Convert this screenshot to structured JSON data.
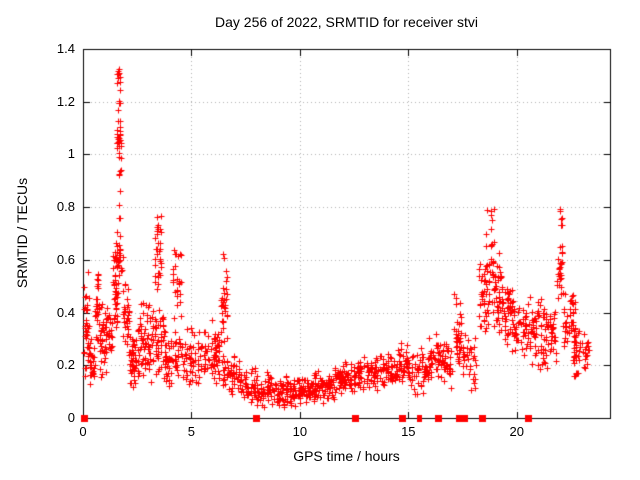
{
  "title": "Day 256 of 2022, SRMTID for receiver stvi",
  "colors": {
    "marker": "#ff0000",
    "grid": "#b0b0b0",
    "border": "#000000",
    "background": "#ffffff",
    "text": "#000000"
  },
  "axes": {
    "x": {
      "label": "GPS time / hours",
      "min": 0,
      "max": 24.3,
      "ticks": [
        {
          "v": 0,
          "label": "0"
        },
        {
          "v": 5,
          "label": "5"
        },
        {
          "v": 10,
          "label": "10"
        },
        {
          "v": 15,
          "label": "15"
        },
        {
          "v": 20,
          "label": "20"
        }
      ]
    },
    "y": {
      "label": "SRMTID / TECUs",
      "min": 0,
      "max": 1.4,
      "ticks": [
        {
          "v": 0,
          "label": "0"
        },
        {
          "v": 0.2,
          "label": "0.2"
        },
        {
          "v": 0.4,
          "label": "0.4"
        },
        {
          "v": 0.6,
          "label": "0.6"
        },
        {
          "v": 0.8,
          "label": "0.8"
        },
        {
          "v": 1,
          "label": "1"
        },
        {
          "v": 1.2,
          "label": "1.2"
        },
        {
          "v": 1.4,
          "label": "1.4"
        }
      ]
    }
  },
  "chart_data": {
    "type": "scatter",
    "title": "Day 256 of 2022, SRMTID for receiver stvi",
    "xlabel": "GPS time / hours",
    "ylabel": "SRMTID / TECUs",
    "xlim": [
      0,
      24.3
    ],
    "ylim": [
      0,
      1.4
    ],
    "grid": true,
    "legend": "none",
    "marker": "plus",
    "marker_color": "#ff0000",
    "series_name": "SRMTID",
    "point_clusters_note": "dense scatter approximated by clusters: [x_start_hr, x_end_hr, y_min_TECU, y_max_TECU, n_points, distribution(c=centered,u=uniform)]",
    "clusters": [
      [
        0.05,
        0.28,
        0.1,
        0.58,
        34,
        "c"
      ],
      [
        0.28,
        0.55,
        0.08,
        0.35,
        28,
        "c"
      ],
      [
        0.55,
        0.75,
        0.28,
        0.57,
        28,
        "c"
      ],
      [
        0.75,
        1.35,
        0.14,
        0.45,
        60,
        "c"
      ],
      [
        1.38,
        1.58,
        0.25,
        0.72,
        38,
        "c"
      ],
      [
        1.58,
        1.72,
        1.24,
        1.35,
        11,
        "c"
      ],
      [
        1.6,
        1.7,
        1.16,
        1.22,
        5,
        "u"
      ],
      [
        1.55,
        1.78,
        0.96,
        1.14,
        26,
        "c"
      ],
      [
        1.62,
        1.75,
        0.72,
        0.95,
        8,
        "u"
      ],
      [
        1.55,
        1.85,
        0.45,
        0.72,
        22,
        "c"
      ],
      [
        1.85,
        2.15,
        0.25,
        0.52,
        30,
        "c"
      ],
      [
        2.1,
        2.45,
        0.1,
        0.32,
        45,
        "c"
      ],
      [
        2.5,
        3.25,
        0.12,
        0.46,
        70,
        "c"
      ],
      [
        3.3,
        3.62,
        0.45,
        0.82,
        32,
        "c"
      ],
      [
        3.3,
        3.7,
        0.15,
        0.45,
        35,
        "c"
      ],
      [
        3.7,
        4.1,
        0.1,
        0.35,
        35,
        "c"
      ],
      [
        4.15,
        4.55,
        0.35,
        0.67,
        28,
        "c"
      ],
      [
        4.15,
        4.7,
        0.12,
        0.35,
        30,
        "c"
      ],
      [
        4.7,
        5.6,
        0.1,
        0.35,
        55,
        "c"
      ],
      [
        5.6,
        6.3,
        0.12,
        0.38,
        55,
        "c"
      ],
      [
        6.35,
        6.65,
        0.25,
        0.65,
        32,
        "c"
      ],
      [
        6.4,
        7.2,
        0.08,
        0.25,
        50,
        "c"
      ],
      [
        7.2,
        8.2,
        0.04,
        0.2,
        60,
        "c"
      ],
      [
        8.2,
        9.6,
        0.03,
        0.18,
        90,
        "c"
      ],
      [
        9.6,
        10.6,
        0.04,
        0.16,
        70,
        "c"
      ],
      [
        10.6,
        11.6,
        0.05,
        0.18,
        70,
        "c"
      ],
      [
        11.6,
        12.6,
        0.08,
        0.22,
        70,
        "c"
      ],
      [
        12.6,
        13.6,
        0.1,
        0.24,
        70,
        "c"
      ],
      [
        13.6,
        14.6,
        0.1,
        0.26,
        60,
        "c"
      ],
      [
        14.6,
        15.1,
        0.12,
        0.3,
        35,
        "c"
      ],
      [
        15.1,
        15.9,
        0.08,
        0.28,
        45,
        "c"
      ],
      [
        15.9,
        16.5,
        0.12,
        0.33,
        40,
        "c"
      ],
      [
        16.5,
        17.1,
        0.1,
        0.3,
        35,
        "c"
      ],
      [
        17.1,
        17.45,
        0.15,
        0.48,
        35,
        "c"
      ],
      [
        17.5,
        18.15,
        0.1,
        0.33,
        35,
        "c"
      ],
      [
        18.25,
        18.75,
        0.3,
        0.62,
        42,
        "c"
      ],
      [
        18.6,
        18.95,
        0.55,
        0.8,
        20,
        "u"
      ],
      [
        18.85,
        19.3,
        0.3,
        0.68,
        45,
        "c"
      ],
      [
        19.3,
        19.8,
        0.25,
        0.52,
        45,
        "c"
      ],
      [
        19.8,
        20.6,
        0.22,
        0.45,
        50,
        "c"
      ],
      [
        20.6,
        21.3,
        0.15,
        0.48,
        52,
        "c"
      ],
      [
        21.3,
        21.8,
        0.18,
        0.45,
        40,
        "c"
      ],
      [
        21.85,
        22.15,
        0.43,
        0.72,
        26,
        "c"
      ],
      [
        21.95,
        22.12,
        0.73,
        0.82,
        8,
        "u"
      ],
      [
        22.1,
        22.7,
        0.2,
        0.5,
        45,
        "c"
      ],
      [
        22.6,
        23.35,
        0.13,
        0.38,
        45,
        "c"
      ]
    ],
    "zero_markers_note": "solid red squares plotted at y=0, x in GPS hours",
    "zero_markers": [
      {
        "x": 0.05,
        "w": 7
      },
      {
        "x": 8.0,
        "w": 7
      },
      {
        "x": 12.58,
        "w": 7
      },
      {
        "x": 14.72,
        "w": 7
      },
      {
        "x": 15.45,
        "w": 3
      },
      {
        "x": 15.55,
        "w": 3
      },
      {
        "x": 16.37,
        "w": 7
      },
      {
        "x": 17.35,
        "w": 7
      },
      {
        "x": 17.6,
        "w": 7
      },
      {
        "x": 18.43,
        "w": 7
      },
      {
        "x": 20.55,
        "w": 7
      }
    ]
  }
}
